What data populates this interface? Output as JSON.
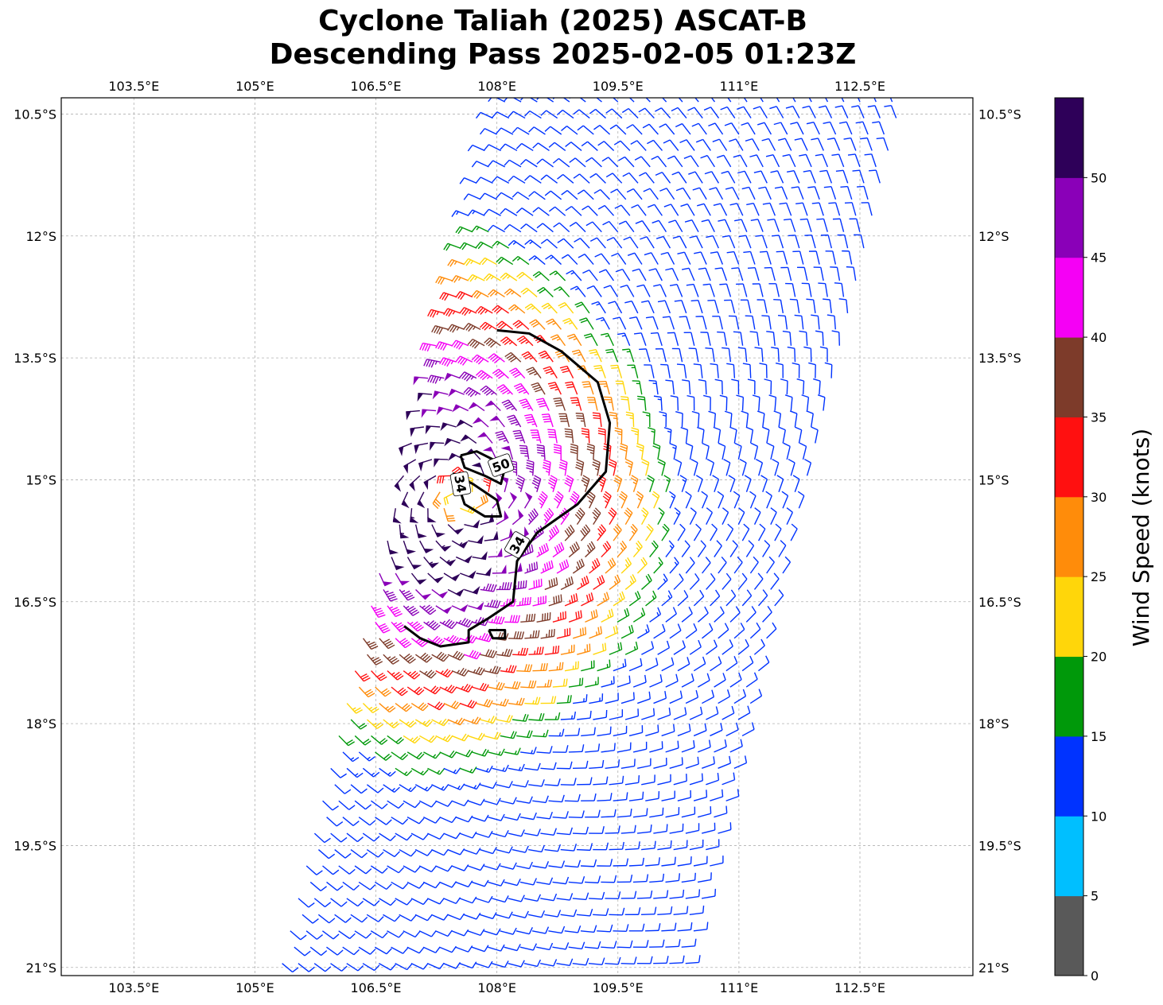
{
  "title": {
    "line1": "Cyclone Taliah (2025) ASCAT-B",
    "line2": "Descending Pass 2025-02-05 01:23Z"
  },
  "map": {
    "lon_range": [
      102.6,
      113.9
    ],
    "lat_range": [
      -21.1,
      -10.3
    ],
    "lon_ticks": [
      103.5,
      105,
      106.5,
      108,
      109.5,
      111,
      112.5
    ],
    "lon_tick_labels": [
      "103.5°E",
      "105°E",
      "106.5°E",
      "108°E",
      "109.5°E",
      "111°E",
      "112.5°E"
    ],
    "lat_ticks": [
      -10.5,
      -12,
      -13.5,
      -15,
      -16.5,
      -18,
      -19.5,
      -21
    ],
    "lat_tick_labels": [
      "10.5°S",
      "12°S",
      "13.5°S",
      "15°S",
      "16.5°S",
      "18°S",
      "19.5°S",
      "21°S"
    ],
    "grid": true,
    "grid_color": "#b0b0b0",
    "contours": [
      {
        "level": "34",
        "label": "34",
        "color": "#000000"
      },
      {
        "level": "50",
        "label": "50",
        "color": "#000000"
      },
      {
        "level": "34",
        "label": "34",
        "color": "#000000"
      }
    ],
    "cyclone_center": {
      "lon": 107.55,
      "lat": -15.2
    },
    "swath": {
      "top_left": {
        "lon": 108.1,
        "lat": -10.35
      },
      "top_right": {
        "lon": 113.0,
        "lat": -10.35
      },
      "bottom_right": {
        "lon": 110.4,
        "lat": -21.1
      },
      "bottom_left": {
        "lon": 105.4,
        "lat": -21.1
      }
    },
    "wind_barb_note": "wind barbs colored by speed (knots)"
  },
  "colorbar": {
    "label": "Wind Speed (knots)",
    "ticks": [
      "0",
      "5",
      "10",
      "15",
      "20",
      "25",
      "30",
      "35",
      "40",
      "45",
      "50"
    ],
    "bins": [
      {
        "from": 0,
        "to": 5,
        "color": "#595959"
      },
      {
        "from": 5,
        "to": 10,
        "color": "#00bfff"
      },
      {
        "from": 10,
        "to": 15,
        "color": "#0033ff"
      },
      {
        "from": 15,
        "to": 20,
        "color": "#00990a"
      },
      {
        "from": 20,
        "to": 25,
        "color": "#ffd60a"
      },
      {
        "from": 25,
        "to": 30,
        "color": "#ff8c0a"
      },
      {
        "from": 30,
        "to": 35,
        "color": "#ff1010"
      },
      {
        "from": 35,
        "to": 40,
        "color": "#7d3b2a"
      },
      {
        "from": 40,
        "to": 45,
        "color": "#f500f5"
      },
      {
        "from": 45,
        "to": 50,
        "color": "#8a00b8"
      },
      {
        "from": 50,
        "to": 55,
        "color": "#2e0059"
      }
    ]
  }
}
